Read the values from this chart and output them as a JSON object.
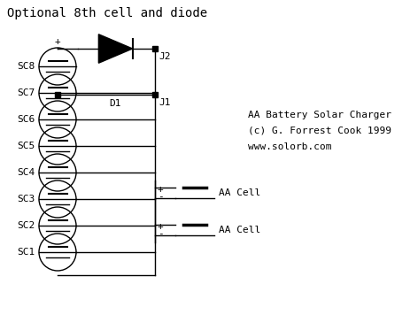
{
  "title": "Optional 8th cell and diode",
  "credit_line1": "AA Battery Solar Charger",
  "credit_line2": "(c) G. Forrest Cook 1999",
  "credit_line3": "www.solorb.com",
  "bg_color": "#ffffff",
  "line_color": "#000000",
  "cell_labels": [
    "SC8",
    "SC7",
    "SC6",
    "SC5",
    "SC4",
    "SC3",
    "SC2",
    "SC1"
  ],
  "fig_width": 4.63,
  "fig_height": 3.73,
  "dpi": 100
}
